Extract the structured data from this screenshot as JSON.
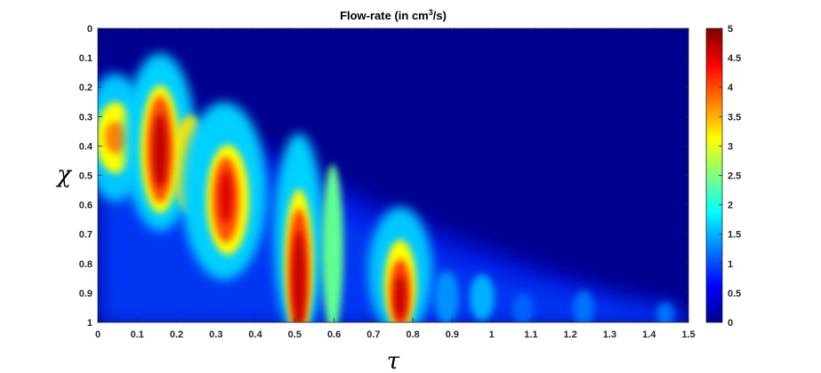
{
  "chart_data": {
    "type": "heatmap",
    "title": "Flow-rate (in cm",
    "title_superscript": "3",
    "title_suffix": "/s)",
    "xlabel": "τ",
    "ylabel": "χ",
    "xlim": [
      0,
      1.5
    ],
    "ylim": [
      0,
      1
    ],
    "y_reversed": true,
    "colormap": "jet",
    "color_range": [
      0,
      5
    ],
    "background_color": "#00008f",
    "x_ticks": [
      "0",
      "0.1",
      "0.2",
      "0.3",
      "0.4",
      "0.5",
      "0.6",
      "0.7",
      "0.8",
      "0.9",
      "1",
      "1.1",
      "1.2",
      "1.3",
      "1.4",
      "1.5"
    ],
    "y_ticks": [
      "0",
      "0.1",
      "0.2",
      "0.3",
      "0.4",
      "0.5",
      "0.6",
      "0.7",
      "0.8",
      "0.9",
      "1"
    ],
    "colorbar_ticks": [
      "0",
      "0.5",
      "1",
      "1.5",
      "2",
      "2.5",
      "3",
      "3.5",
      "4",
      "4.5",
      "5"
    ],
    "hotspots": [
      {
        "tau": 0.04,
        "chi": 0.37,
        "peak": 4.2
      },
      {
        "tau": 0.16,
        "chi": 0.42,
        "peak": 4.9
      },
      {
        "tau": 0.32,
        "chi": 0.56,
        "peak": 4.6
      },
      {
        "tau": 0.5,
        "chi": 0.8,
        "peak": 5.0
      },
      {
        "tau": 0.76,
        "chi": 0.88,
        "peak": 4.7
      },
      {
        "tau": 0.98,
        "chi": 0.92,
        "peak": 1.6
      },
      {
        "tau": 1.24,
        "chi": 0.95,
        "peak": 1.0
      },
      {
        "tau": 1.45,
        "chi": 0.97,
        "peak": 0.9
      }
    ]
  }
}
